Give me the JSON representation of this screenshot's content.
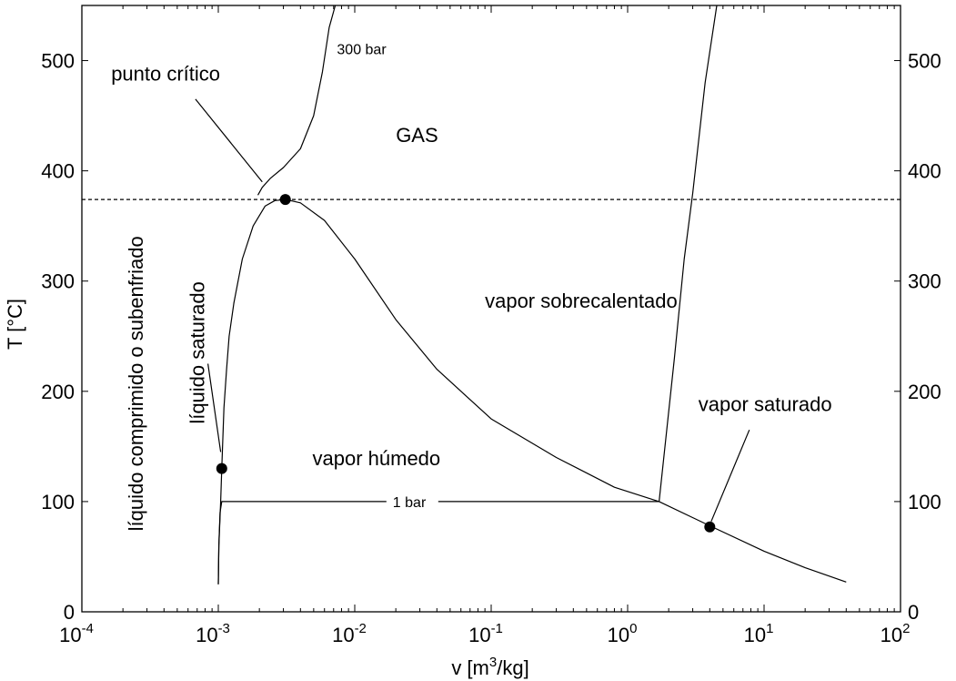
{
  "chart_data": {
    "type": "line",
    "xlabel": "v [m",
    "xlabel_sup": "3",
    "xlabel_end": "/kg]",
    "ylabel": "T [°C]",
    "x_scale": "log",
    "xlim": [
      0.0001,
      100
    ],
    "ylim": [
      0,
      550
    ],
    "grid": false,
    "x_ticks": [
      {
        "base": "10",
        "exp": "-4",
        "value": 0.0001
      },
      {
        "base": "10",
        "exp": "-3",
        "value": 0.001
      },
      {
        "base": "10",
        "exp": "-2",
        "value": 0.01
      },
      {
        "base": "10",
        "exp": "-1",
        "value": 0.1
      },
      {
        "base": "10",
        "exp": "0",
        "value": 1
      },
      {
        "base": "10",
        "exp": "1",
        "value": 10
      },
      {
        "base": "10",
        "exp": "2",
        "value": 100
      }
    ],
    "y_ticks": [
      {
        "label": "0",
        "value": 0
      },
      {
        "label": "100",
        "value": 100
      },
      {
        "label": "200",
        "value": 200
      },
      {
        "label": "300",
        "value": 300
      },
      {
        "label": "400",
        "value": 400
      },
      {
        "label": "500",
        "value": 500
      }
    ],
    "series": [
      {
        "name": "saturation dome",
        "x": [
          0.001,
          0.00101,
          0.00104,
          0.00106,
          0.0011,
          0.00115,
          0.0012,
          0.0013,
          0.0015,
          0.0018,
          0.0022,
          0.0026,
          0.0031,
          0.004,
          0.006,
          0.01,
          0.02,
          0.04,
          0.1,
          0.3,
          0.8,
          1.7,
          4.0,
          10,
          20,
          40
        ],
        "y": [
          25,
          60,
          100,
          130,
          185,
          220,
          250,
          280,
          320,
          350,
          368,
          373,
          374,
          371,
          355,
          320,
          265,
          220,
          175,
          140,
          113,
          100,
          78,
          55,
          40,
          27
        ]
      },
      {
        "name": "300 bar",
        "x": [
          0.00195,
          0.0021,
          0.0024,
          0.003,
          0.004,
          0.005,
          0.0058,
          0.0065,
          0.0072
        ],
        "y": [
          378,
          385,
          393,
          403,
          420,
          450,
          490,
          530,
          550
        ]
      },
      {
        "name": "1 bar",
        "x": [
          0.001,
          0.00101,
          0.00103,
          0.00106,
          1.7,
          2.2,
          2.6,
          3.0,
          3.7,
          4.5
        ],
        "y": [
          25,
          60,
          90,
          100,
          100,
          230,
          320,
          380,
          480,
          550
        ]
      },
      {
        "name": "critical isotherm",
        "x": [
          0.0001,
          100
        ],
        "y": [
          374,
          374
        ]
      },
      {
        "name": "punto crítico leader",
        "x": [
          0.00068,
          0.0021
        ],
        "y": [
          465,
          390
        ]
      },
      {
        "name": "líquido saturado leader",
        "x": [
          0.00084,
          0.00104
        ],
        "y": [
          225,
          145
        ]
      },
      {
        "name": "vapor saturado leader",
        "x": [
          4.1,
          7.8
        ],
        "y": [
          82,
          165
        ]
      }
    ],
    "points": [
      {
        "label": "punto crítico",
        "x": 0.0031,
        "y": 374
      },
      {
        "label": "líquido saturado",
        "x": 0.00106,
        "y": 130
      },
      {
        "label": "vapor saturado",
        "x": 4.0,
        "y": 77
      }
    ],
    "annotations": [
      {
        "text": "punto crítico",
        "x": 0.000164,
        "y": 482,
        "size": "normal",
        "rotate": 0
      },
      {
        "text": "300 bar",
        "x": 0.0074,
        "y": 506,
        "size": "small",
        "rotate": 0
      },
      {
        "text": "GAS",
        "x": 0.02,
        "y": 426,
        "size": "normal",
        "rotate": 0
      },
      {
        "text": "vapor sobrecalentado",
        "x": 0.09,
        "y": 276,
        "size": "normal",
        "rotate": 0
      },
      {
        "text": "vapor saturado",
        "x": 3.3,
        "y": 182,
        "size": "normal",
        "rotate": 0
      },
      {
        "text": "vapor húmedo",
        "x": 0.0049,
        "y": 133,
        "size": "normal",
        "rotate": 0
      },
      {
        "text": "1 bar",
        "x": 0.019,
        "y": 95,
        "size": "small",
        "rotate": 0
      },
      {
        "text": "líquido saturado",
        "x": 0.00079,
        "y": 235,
        "size": "normal",
        "rotate": -90
      },
      {
        "text": "líquido comprimido o  subenfriado",
        "x": 0.00028,
        "y": 207,
        "size": "normal",
        "rotate": -90
      }
    ]
  }
}
